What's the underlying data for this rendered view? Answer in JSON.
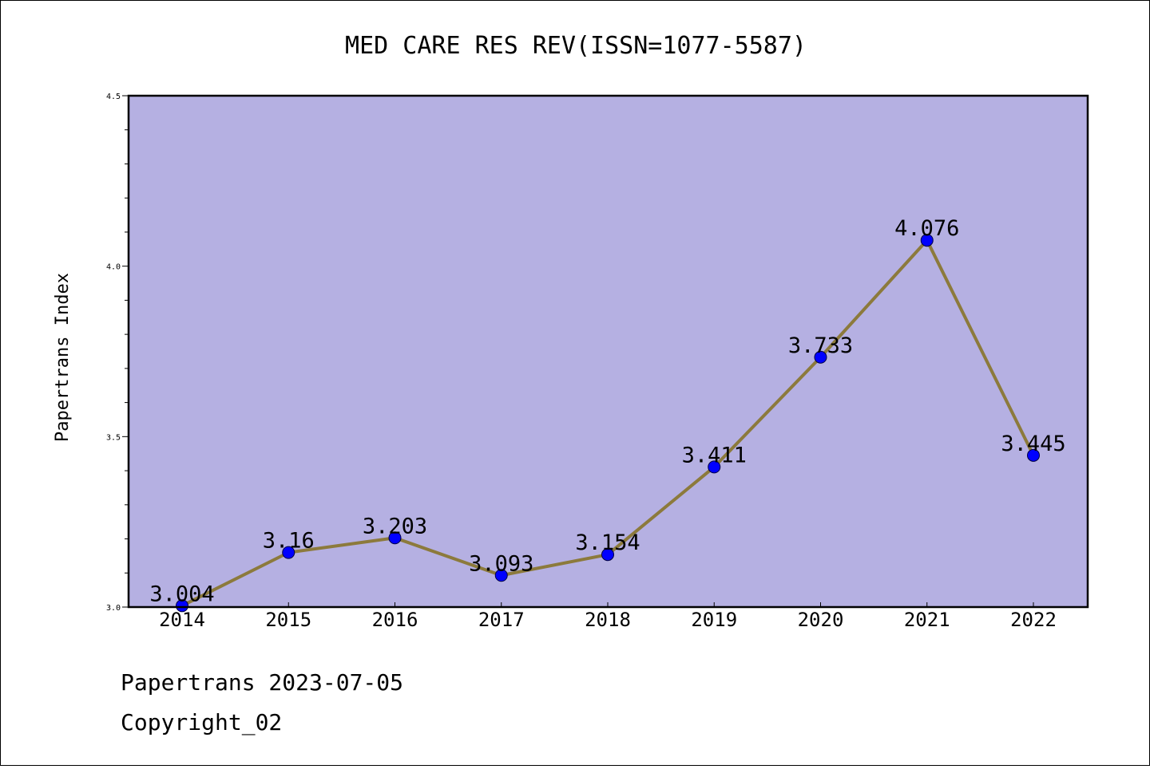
{
  "chart_data": {
    "type": "line",
    "title": "MED CARE RES REV(ISSN=1077-5587)",
    "xlabel": "",
    "ylabel": "Papertrans Index",
    "categories": [
      "2014",
      "2015",
      "2016",
      "2017",
      "2018",
      "2019",
      "2020",
      "2021",
      "2022"
    ],
    "values": [
      3.004,
      3.16,
      3.203,
      3.093,
      3.154,
      3.411,
      3.733,
      4.076,
      3.445
    ],
    "data_labels": [
      "3.004",
      "3.16",
      "3.203",
      "3.093",
      "3.154",
      "3.411",
      "3.733",
      "4.076",
      "3.445"
    ],
    "ylim": [
      3.0,
      4.5
    ],
    "yticks": [
      "3.0",
      "3.5",
      "4.0",
      "4.5"
    ],
    "grid": false,
    "colors": {
      "plot_background": "#b5b0e2",
      "line": "#8c7a3c",
      "marker": "#0000ff"
    }
  },
  "footer": {
    "line1": "Papertrans 2023-07-05",
    "line2": "Copyright_02"
  }
}
